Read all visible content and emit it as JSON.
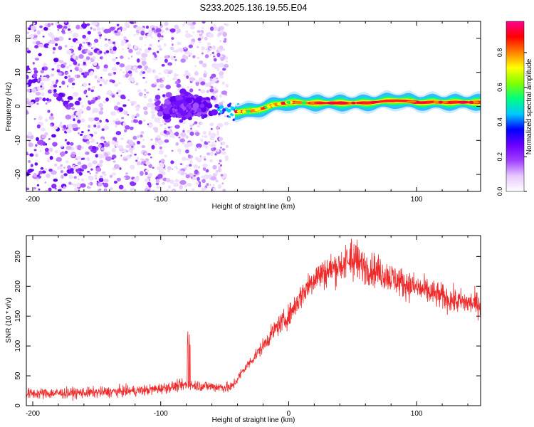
{
  "title": "S233.2025.136.19.55.E04",
  "colorbar": {
    "label": "Normalized spectral amplitude",
    "ticks": [
      "0.0",
      "0.2",
      "0.4",
      "0.6",
      "0.8"
    ],
    "tick_values": [
      0.0,
      0.2,
      0.4,
      0.6,
      0.8
    ],
    "range": [
      0,
      0.98
    ],
    "stops": [
      "#ffffff",
      "#e8c8ff",
      "#a040ff",
      "#6a00ff",
      "#0000ff",
      "#00c8ff",
      "#00ff80",
      "#80ff00",
      "#ffff00",
      "#ff8000",
      "#ff0000",
      "#ff0090"
    ]
  },
  "chart_data": [
    {
      "type": "heatmap",
      "xlabel": "Height of straight line (km)",
      "ylabel": "Frequency (Hz)",
      "xlim": [
        -205,
        150
      ],
      "ylim": [
        -25,
        25
      ],
      "xticks": [
        -200,
        -100,
        0,
        100
      ],
      "xtick_labels": [
        "-200",
        "-100",
        "0",
        "100"
      ],
      "yticks": [
        -20,
        -10,
        0,
        10,
        20
      ],
      "ytick_labels": [
        "-20",
        "-10",
        "0",
        "10",
        "20"
      ],
      "regions": {
        "noise_x": [
          -205,
          -48
        ],
        "cluster_center": [
          -80,
          0
        ],
        "tone_start_x": -42,
        "tone_profile": [
          {
            "x": -42,
            "y": -1.5
          },
          {
            "x": -30,
            "y": -1.5
          },
          {
            "x": -20,
            "y": -0.5
          },
          {
            "x": -10,
            "y": 0.5
          },
          {
            "x": 0,
            "y": 1.2
          },
          {
            "x": 20,
            "y": 1.0
          },
          {
            "x": 60,
            "y": 1.0
          },
          {
            "x": 85,
            "y": 1.8
          },
          {
            "x": 100,
            "y": 1.2
          },
          {
            "x": 150,
            "y": 1.2
          }
        ]
      }
    },
    {
      "type": "line",
      "xlabel": "Height of straight line (km)",
      "ylabel": "SNR (10 * v/v)",
      "xlim": [
        -205,
        150
      ],
      "ylim": [
        0,
        285
      ],
      "xticks": [
        -200,
        -100,
        0,
        100
      ],
      "xtick_labels": [
        "-200",
        "-100",
        "0",
        "100"
      ],
      "yticks": [
        0,
        50,
        100,
        150,
        200,
        250
      ],
      "ytick_labels": [
        "0",
        "50",
        "100",
        "150",
        "200",
        "250"
      ],
      "series": [
        {
          "color": "#ee2a2a",
          "envelope_x": [
            -205,
            -150,
            -110,
            -80,
            -60,
            -45,
            -35,
            -20,
            -10,
            0,
            10,
            20,
            40,
            50,
            70,
            90,
            110,
            130,
            150
          ],
          "envelope_y": [
            20,
            22,
            26,
            35,
            32,
            30,
            60,
            100,
            130,
            150,
            185,
            215,
            235,
            240,
            225,
            205,
            190,
            175,
            170
          ]
        }
      ]
    }
  ]
}
